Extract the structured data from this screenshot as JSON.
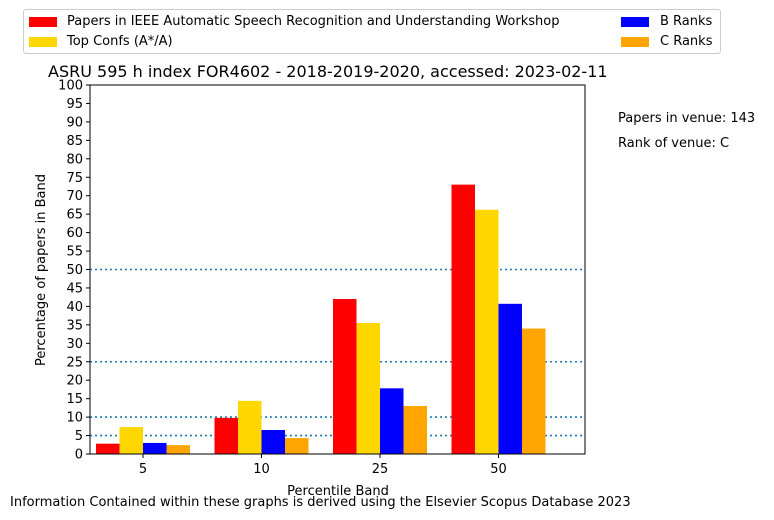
{
  "chart_data": {
    "type": "bar",
    "title": "ASRU 595 h index FOR4602 - 2018-2019-2020, accessed: 2023-02-11",
    "xlabel": "Percentile Band",
    "ylabel": "Percentage of papers in Band",
    "categories": [
      "5",
      "10",
      "25",
      "50"
    ],
    "ylim": [
      0,
      100
    ],
    "yticks": [
      "0",
      "5",
      "10",
      "15",
      "20",
      "25",
      "30",
      "35",
      "40",
      "45",
      "50",
      "55",
      "60",
      "65",
      "70",
      "75",
      "80",
      "85",
      "90",
      "95",
      "100"
    ],
    "reference_lines": [
      5,
      10,
      25,
      50
    ],
    "legend_position": "top",
    "series": [
      {
        "name": "Papers in IEEE Automatic Speech Recognition and Understanding Workshop",
        "color": "#ff0000",
        "values": [
          2.8,
          9.8,
          42.0,
          73.0
        ]
      },
      {
        "name": "Top Confs (A*/A)",
        "color": "#ffd700",
        "values": [
          7.3,
          14.4,
          35.5,
          66.2
        ]
      },
      {
        "name": "B Ranks",
        "color": "#0000ff",
        "values": [
          3.0,
          6.5,
          17.8,
          40.7
        ]
      },
      {
        "name": "C Ranks",
        "color": "#ffa500",
        "values": [
          2.4,
          4.3,
          13.0,
          34.0
        ]
      }
    ]
  },
  "side_info": {
    "papers_in_venue": "Papers in venue: 143",
    "rank_of_venue": "Rank of venue: C"
  },
  "footer": "Information Contained within these graphs is derived using the Elsevier Scopus Database 2023"
}
